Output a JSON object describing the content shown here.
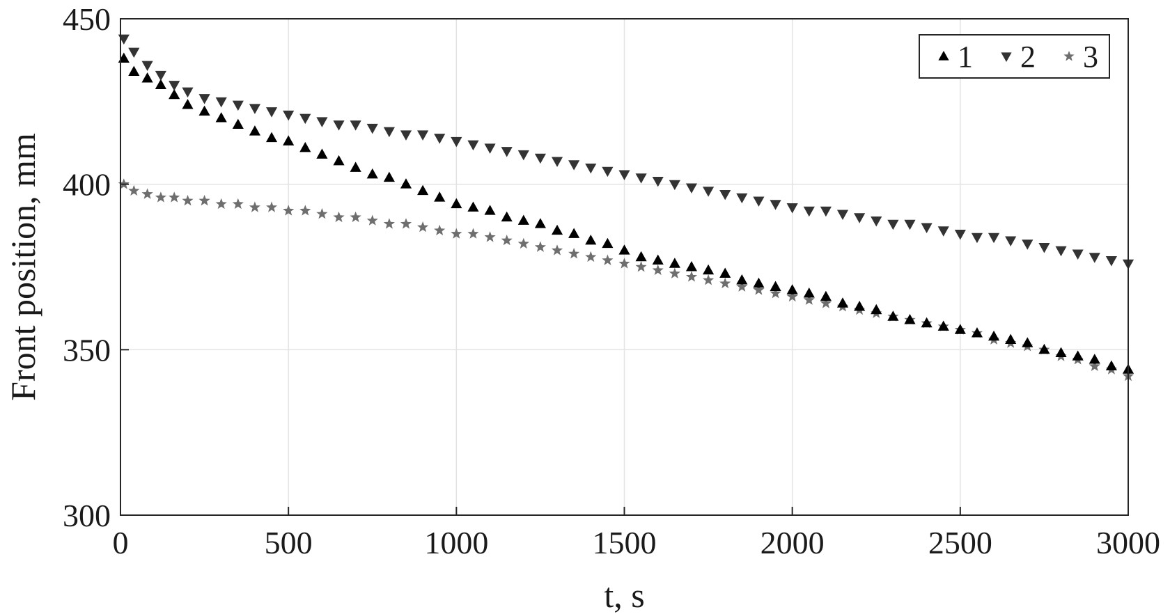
{
  "chart_data": {
    "type": "scatter",
    "xlabel": "t, s",
    "ylabel": "Front position, mm",
    "xlim": [
      0,
      3000
    ],
    "ylim": [
      300,
      450
    ],
    "xticks": [
      0,
      500,
      1000,
      1500,
      2000,
      2500,
      3000
    ],
    "yticks": [
      300,
      350,
      400,
      450
    ],
    "grid": true,
    "legend_position": "top-right",
    "series": [
      {
        "name": "1",
        "marker": "triangle-up",
        "color": "#000000",
        "x": [
          10,
          40,
          80,
          120,
          160,
          200,
          250,
          300,
          350,
          400,
          450,
          500,
          550,
          600,
          650,
          700,
          750,
          800,
          850,
          900,
          950,
          1000,
          1050,
          1100,
          1150,
          1200,
          1250,
          1300,
          1350,
          1400,
          1450,
          1500,
          1550,
          1600,
          1650,
          1700,
          1750,
          1800,
          1850,
          1900,
          1950,
          2000,
          2050,
          2100,
          2150,
          2200,
          2250,
          2300,
          2350,
          2400,
          2450,
          2500,
          2550,
          2600,
          2650,
          2700,
          2750,
          2800,
          2850,
          2900,
          2950,
          3000
        ],
        "y": [
          438,
          434,
          432,
          430,
          427,
          424,
          422,
          420,
          418,
          416,
          414,
          413,
          411,
          409,
          407,
          405,
          403,
          402,
          400,
          398,
          396,
          394,
          393,
          392,
          390,
          389,
          388,
          386,
          385,
          383,
          382,
          380,
          378,
          377,
          376,
          375,
          374,
          373,
          371,
          370,
          369,
          368,
          367,
          366,
          364,
          363,
          362,
          360,
          359,
          358,
          357,
          356,
          355,
          354,
          353,
          352,
          350,
          349,
          348,
          347,
          345,
          344
        ]
      },
      {
        "name": "2",
        "marker": "triangle-down",
        "color": "#333333",
        "x": [
          10,
          40,
          80,
          120,
          160,
          200,
          250,
          300,
          350,
          400,
          450,
          500,
          550,
          600,
          650,
          700,
          750,
          800,
          850,
          900,
          950,
          1000,
          1050,
          1100,
          1150,
          1200,
          1250,
          1300,
          1350,
          1400,
          1450,
          1500,
          1550,
          1600,
          1650,
          1700,
          1750,
          1800,
          1850,
          1900,
          1950,
          2000,
          2050,
          2100,
          2150,
          2200,
          2250,
          2300,
          2350,
          2400,
          2450,
          2500,
          2550,
          2600,
          2650,
          2700,
          2750,
          2800,
          2850,
          2900,
          2950,
          3000
        ],
        "y": [
          444,
          440,
          436,
          433,
          430,
          428,
          426,
          425,
          424,
          423,
          422,
          421,
          420,
          419,
          418,
          418,
          417,
          416,
          415,
          415,
          414,
          413,
          412,
          411,
          410,
          409,
          408,
          407,
          406,
          405,
          404,
          403,
          402,
          401,
          400,
          399,
          398,
          397,
          396,
          395,
          394,
          393,
          392,
          392,
          391,
          390,
          389,
          388,
          388,
          387,
          386,
          385,
          384,
          384,
          383,
          382,
          381,
          380,
          379,
          378,
          377,
          376
        ]
      },
      {
        "name": "3",
        "marker": "star",
        "color": "#6e6e6e",
        "x": [
          10,
          40,
          80,
          120,
          160,
          200,
          250,
          300,
          350,
          400,
          450,
          500,
          550,
          600,
          650,
          700,
          750,
          800,
          850,
          900,
          950,
          1000,
          1050,
          1100,
          1150,
          1200,
          1250,
          1300,
          1350,
          1400,
          1450,
          1500,
          1550,
          1600,
          1650,
          1700,
          1750,
          1800,
          1850,
          1900,
          1950,
          2000,
          2050,
          2100,
          2150,
          2200,
          2250,
          2300,
          2350,
          2400,
          2450,
          2500,
          2550,
          2600,
          2650,
          2700,
          2750,
          2800,
          2850,
          2900,
          2950,
          3000
        ],
        "y": [
          400,
          398,
          397,
          396,
          396,
          395,
          395,
          394,
          394,
          393,
          393,
          392,
          392,
          391,
          390,
          390,
          389,
          388,
          388,
          387,
          386,
          385,
          385,
          384,
          383,
          382,
          381,
          380,
          379,
          378,
          377,
          376,
          375,
          374,
          373,
          372,
          371,
          370,
          369,
          368,
          367,
          366,
          365,
          364,
          363,
          362,
          361,
          360,
          359,
          358,
          357,
          356,
          355,
          353,
          352,
          351,
          350,
          348,
          347,
          345,
          344,
          342
        ]
      }
    ]
  }
}
